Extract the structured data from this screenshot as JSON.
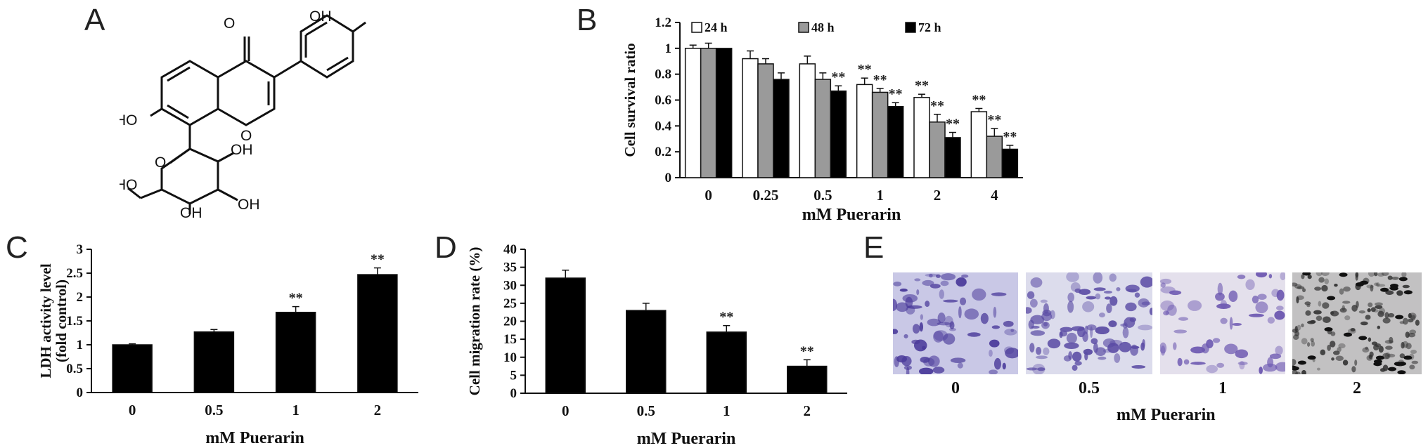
{
  "panels": {
    "A": "A",
    "B": "B",
    "C": "C",
    "D": "D",
    "E": "E"
  },
  "structure": {
    "labels": {
      "oh_top": "OH",
      "o_ketone": "O",
      "ho_left": "HO",
      "o_ring": "O",
      "ho_sugar": "HO",
      "oh_1": "OH",
      "oh_2": "OH",
      "oh_3": "OH",
      "o_pyran": "O"
    }
  },
  "chart_data": [
    {
      "id": "B",
      "type": "bar",
      "categories": [
        "0",
        "0.25",
        "0.5",
        "1",
        "2",
        "4"
      ],
      "series": [
        {
          "name": "24 h",
          "color": "#ffffff",
          "values": [
            1.0,
            0.92,
            0.88,
            0.72,
            0.62,
            0.51
          ],
          "errors": [
            0.025,
            0.06,
            0.06,
            0.05,
            0.025,
            0.025
          ],
          "sig": [
            "",
            "",
            "",
            "**",
            "**",
            "**"
          ]
        },
        {
          "name": "48 h",
          "color": "#9a9a9a",
          "values": [
            1.0,
            0.88,
            0.76,
            0.66,
            0.43,
            0.32
          ],
          "errors": [
            0.04,
            0.04,
            0.05,
            0.03,
            0.06,
            0.06
          ],
          "sig": [
            "",
            "",
            "",
            "**",
            "**",
            "**"
          ]
        },
        {
          "name": "72 h",
          "color": "#000000",
          "values": [
            1.0,
            0.76,
            0.67,
            0.55,
            0.31,
            0.22
          ],
          "errors": [
            0.0,
            0.05,
            0.04,
            0.03,
            0.04,
            0.03
          ],
          "sig": [
            "",
            "",
            "**",
            "**",
            "**",
            "**"
          ]
        }
      ],
      "ylabel": "Cell survival ratio",
      "xlabel": "mM Puerarin",
      "ylim": [
        0,
        1.2
      ],
      "yticks": [
        "0",
        "0.2",
        "0.4",
        "0.6",
        "0.8",
        "1",
        "1.2"
      ],
      "legend_position": "top"
    },
    {
      "id": "C",
      "type": "bar",
      "categories": [
        "0",
        "0.5",
        "1",
        "2"
      ],
      "series": [
        {
          "color": "#000000",
          "values": [
            1.0,
            1.27,
            1.68,
            2.47
          ],
          "errors": [
            0.02,
            0.05,
            0.12,
            0.14
          ],
          "sig": [
            "",
            "",
            "**",
            "**"
          ]
        }
      ],
      "ylabel": "LDH activity level",
      "ylabel2": "(fold control)",
      "xlabel": "mM Puerarin",
      "ylim": [
        0,
        3
      ],
      "yticks": [
        "0",
        "0.5",
        "1",
        "1.5",
        "2",
        "2.5",
        "3"
      ]
    },
    {
      "id": "D",
      "type": "bar",
      "categories": [
        "0",
        "0.5",
        "1",
        "2"
      ],
      "series": [
        {
          "color": "#000000",
          "values": [
            32,
            23,
            17,
            7.5
          ],
          "errors": [
            2.2,
            2,
            1.8,
            1.8
          ],
          "sig": [
            "",
            "",
            "**",
            "**"
          ]
        }
      ],
      "ylabel": "Cell migration rate (%)",
      "xlabel": "mM Puerarin",
      "ylim": [
        0,
        40
      ],
      "yticks": [
        "0",
        "5",
        "10",
        "15",
        "20",
        "25",
        "30",
        "35",
        "40"
      ]
    }
  ],
  "panel_e": {
    "images": [
      {
        "label": "0",
        "tint": "#c9c8e6",
        "cells": "#4a3a9a"
      },
      {
        "label": "0.5",
        "tint": "#dcdcec",
        "cells": "#5a4ba4"
      },
      {
        "label": "1",
        "tint": "#e4e0ec",
        "cells": "#6b56b0"
      },
      {
        "label": "2",
        "tint": "#c2c1c2",
        "cells": "#333333"
      }
    ],
    "xlabel": "mM Puerarin"
  }
}
